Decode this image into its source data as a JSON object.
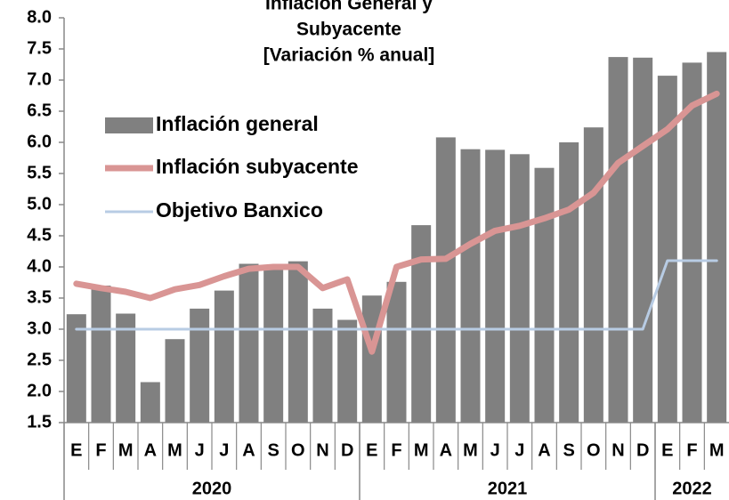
{
  "chart_data": {
    "type": "bar",
    "title": [
      "Inflación General y",
      "Subyacente",
      "[Variación % anual]"
    ],
    "categories": [
      "E",
      "F",
      "M",
      "A",
      "M",
      "J",
      "J",
      "A",
      "S",
      "O",
      "N",
      "D",
      "E",
      "F",
      "M",
      "A",
      "M",
      "J",
      "J",
      "A",
      "S",
      "O",
      "N",
      "D",
      "E",
      "F",
      "M"
    ],
    "groups": [
      {
        "name": "2020",
        "size": 12
      },
      {
        "name": "2021",
        "size": 12
      },
      {
        "name": "2022",
        "size": 3
      }
    ],
    "series": [
      {
        "name": "Inflación general",
        "type": "bar",
        "color": "#808080",
        "values": [
          3.24,
          3.7,
          3.25,
          2.15,
          2.84,
          3.33,
          3.62,
          4.05,
          4.01,
          4.09,
          3.33,
          3.15,
          3.54,
          3.76,
          4.67,
          6.08,
          5.89,
          5.88,
          5.81,
          5.59,
          6.0,
          6.24,
          7.37,
          7.36,
          7.07,
          7.28,
          7.45
        ]
      },
      {
        "name": "Inflación subyacente",
        "type": "line",
        "color": "#d99594",
        "values": [
          3.73,
          3.66,
          3.6,
          3.5,
          3.64,
          3.71,
          3.85,
          3.97,
          4.0,
          4.0,
          3.66,
          3.8,
          2.64,
          4.0,
          4.12,
          4.13,
          4.37,
          4.58,
          4.66,
          4.78,
          4.92,
          5.19,
          5.67,
          5.94,
          6.21,
          6.59,
          6.78
        ]
      },
      {
        "name": "Objetivo Banxico",
        "type": "line",
        "color": "#b8cce4",
        "values": [
          3,
          3,
          3,
          3,
          3,
          3,
          3,
          3,
          3,
          3,
          3,
          3,
          3,
          3,
          3,
          3,
          3,
          3,
          3,
          3,
          3,
          3,
          3,
          3,
          4.1,
          4.1,
          4.1
        ]
      }
    ],
    "ylim": [
      1.5,
      8.0
    ],
    "yticks": [
      {
        "value": 1.5,
        "label": "1.5"
      },
      {
        "value": 2,
        "label": "2.0"
      },
      2.5,
      {
        "value": 3,
        "label": "3.0"
      },
      3.5,
      {
        "value": 4,
        "label": "4.0"
      },
      4.5,
      {
        "value": 5,
        "label": "5.0"
      },
      5.5,
      {
        "value": 6,
        "label": "6.0"
      },
      6.5,
      {
        "value": 7,
        "label": "7.0"
      },
      7.5,
      {
        "value": 8,
        "label": "8.0"
      }
    ],
    "legend": "upper-left"
  }
}
